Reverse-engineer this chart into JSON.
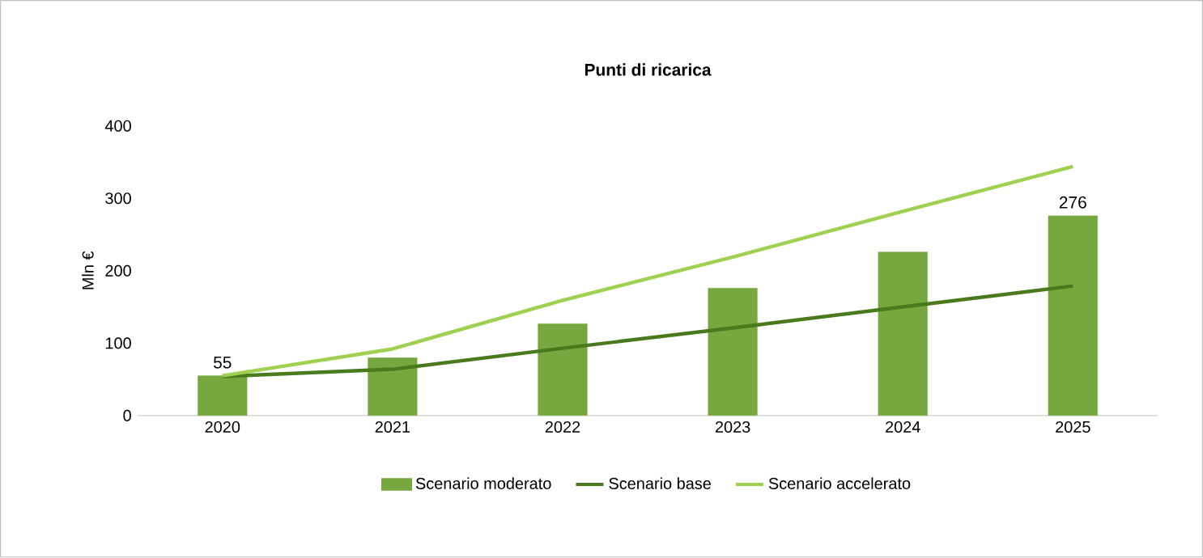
{
  "chart_data": {
    "type": "bar",
    "title": "Punti di ricarica",
    "ylabel": "Mln €",
    "categories": [
      "2020",
      "2021",
      "2022",
      "2023",
      "2024",
      "2025"
    ],
    "series": [
      {
        "name": "Scenario moderato",
        "color": "#77a73f",
        "values": [
          55,
          80,
          127,
          176,
          226,
          276
        ],
        "value_labels": [
          "55",
          null,
          null,
          null,
          null,
          "276"
        ]
      },
      {
        "name": "Scenario base",
        "type": "line",
        "color": "#4a7a1e",
        "values": [
          54,
          64,
          93,
          121,
          150,
          179
        ]
      },
      {
        "name": "Scenario accelerato",
        "type": "line",
        "color": "#9fd04f",
        "values": [
          55,
          92,
          159,
          219,
          282,
          344
        ]
      }
    ],
    "ylim": [
      0,
      400
    ],
    "yticks": [
      0,
      100,
      200,
      300,
      400
    ],
    "grid": false,
    "legend": "bottom",
    "marker": "none",
    "line_style": "solid"
  }
}
